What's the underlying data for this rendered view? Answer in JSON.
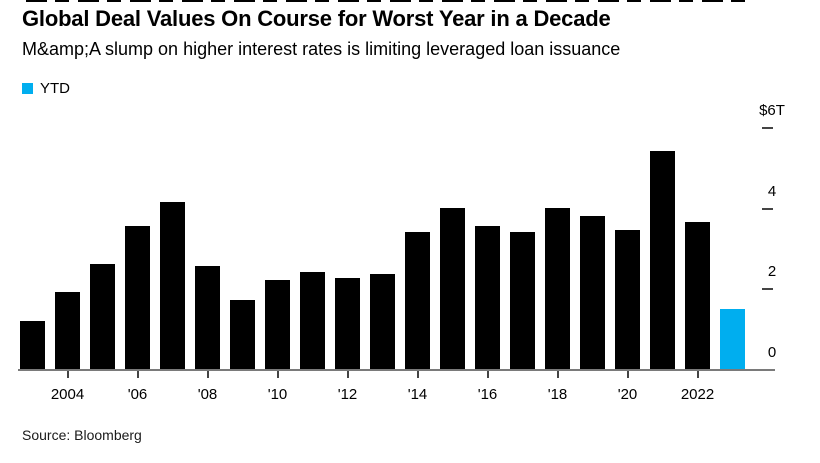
{
  "header": {
    "title": "Global Deal Values On Course for Worst Year in a Decade",
    "subtitle": "M&amp;A slump on higher interest rates is limiting leveraged loan issuance"
  },
  "legend": {
    "label": "YTD"
  },
  "footer": {
    "source": "Source: Bloomberg"
  },
  "colors": {
    "bar": "#000000",
    "ytd": "#00AEEF",
    "axis_line": "#7a7a7a",
    "tick": "#444444",
    "text": "#000000"
  },
  "chart_data": {
    "type": "bar",
    "title": "Global Deal Values On Course for Worst Year in a Decade",
    "subtitle": "M&amp;A slump on higher interest rates is limiting leveraged loan issuance",
    "unit": "USD trillions",
    "legend": "YTD",
    "grid": false,
    "categories": [
      2003,
      2004,
      2005,
      2006,
      2007,
      2008,
      2009,
      2010,
      2011,
      2012,
      2013,
      2014,
      2015,
      2016,
      2017,
      2018,
      2019,
      2020,
      2021,
      2022,
      2023
    ],
    "values": [
      1.2,
      1.9,
      2.6,
      3.55,
      4.15,
      2.55,
      1.7,
      2.2,
      2.4,
      2.25,
      2.35,
      3.4,
      4.0,
      3.55,
      3.4,
      4.0,
      3.8,
      3.45,
      5.4,
      3.65,
      1.5
    ],
    "ytd_index": 20,
    "y_axis": {
      "side": "right",
      "range": [
        0,
        6
      ],
      "ticks": [
        {
          "label": "$6T",
          "value": 6
        },
        {
          "label": "4",
          "value": 4
        },
        {
          "label": "2",
          "value": 2
        },
        {
          "label": "0",
          "value": 0
        }
      ]
    },
    "x_axis": {
      "tick_labels": [
        {
          "label": "2004",
          "year": 2004
        },
        {
          "label": "'06",
          "year": 2006
        },
        {
          "label": "'08",
          "year": 2008
        },
        {
          "label": "'10",
          "year": 2010
        },
        {
          "label": "'12",
          "year": 2012
        },
        {
          "label": "'14",
          "year": 2014
        },
        {
          "label": "'16",
          "year": 2016
        },
        {
          "label": "'18",
          "year": 2018
        },
        {
          "label": "'20",
          "year": 2020
        },
        {
          "label": "2022",
          "year": 2022
        }
      ]
    }
  }
}
